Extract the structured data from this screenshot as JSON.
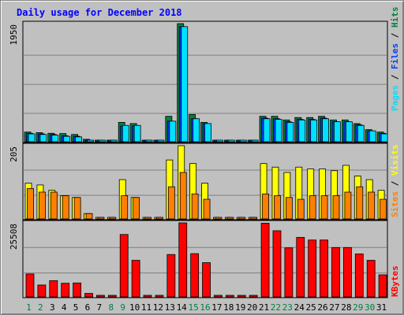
{
  "title": "Daily usage for December 2018",
  "colors": {
    "background": "#c0c0c0",
    "hits": "#008040",
    "files": "#0040ff",
    "pages": "#00e0ff",
    "visits": "#ffff00",
    "sites": "#ff8000",
    "kbytes": "#ff0000",
    "weekend_day": "#008040",
    "weekday": "#000000"
  },
  "chart_data": [
    {
      "type": "bar",
      "panel": "requests",
      "categories": [
        "1",
        "2",
        "3",
        "4",
        "5",
        "6",
        "7",
        "8",
        "9",
        "10",
        "11",
        "12",
        "13",
        "14",
        "15",
        "16",
        "17",
        "18",
        "19",
        "20",
        "21",
        "22",
        "23",
        "24",
        "25",
        "26",
        "27",
        "28",
        "29",
        "30",
        "31"
      ],
      "max_label": "1950",
      "ylim": [
        0,
        1950
      ],
      "series": [
        {
          "name": "Hits",
          "values": [
            160,
            150,
            140,
            135,
            120,
            40,
            0,
            0,
            320,
            300,
            0,
            0,
            420,
            1950,
            450,
            320,
            0,
            0,
            0,
            0,
            420,
            420,
            360,
            400,
            400,
            420,
            360,
            360,
            300,
            200,
            160
          ]
        },
        {
          "name": "Files",
          "values": [
            140,
            130,
            120,
            100,
            90,
            20,
            0,
            0,
            260,
            260,
            0,
            0,
            340,
            1900,
            380,
            300,
            0,
            0,
            0,
            0,
            390,
            380,
            330,
            370,
            370,
            390,
            330,
            330,
            280,
            180,
            140
          ]
        },
        {
          "name": "Pages",
          "values": [
            130,
            120,
            110,
            90,
            80,
            15,
            0,
            0,
            270,
            270,
            0,
            0,
            340,
            1900,
            380,
            300,
            0,
            0,
            0,
            0,
            380,
            370,
            320,
            360,
            360,
            380,
            330,
            330,
            270,
            180,
            130
          ]
        }
      ],
      "legend": [
        "Pages",
        "Files",
        "Hits"
      ]
    },
    {
      "type": "bar",
      "panel": "visitors",
      "categories": [
        "1",
        "2",
        "3",
        "4",
        "5",
        "6",
        "7",
        "8",
        "9",
        "10",
        "11",
        "12",
        "13",
        "14",
        "15",
        "16",
        "17",
        "18",
        "19",
        "20",
        "21",
        "22",
        "23",
        "24",
        "25",
        "26",
        "27",
        "28",
        "29",
        "30",
        "31"
      ],
      "max_label": "205",
      "ylim": [
        0,
        205
      ],
      "series": [
        {
          "name": "Visits",
          "values": [
            100,
            95,
            80,
            65,
            60,
            15,
            0,
            0,
            110,
            60,
            0,
            0,
            165,
            205,
            155,
            100,
            0,
            0,
            0,
            0,
            155,
            145,
            130,
            145,
            140,
            140,
            135,
            150,
            120,
            110,
            80
          ]
        },
        {
          "name": "Sites",
          "values": [
            85,
            75,
            75,
            65,
            60,
            15,
            0,
            0,
            65,
            60,
            0,
            0,
            90,
            130,
            70,
            55,
            0,
            0,
            0,
            0,
            70,
            65,
            60,
            55,
            65,
            65,
            65,
            75,
            90,
            75,
            55
          ]
        }
      ],
      "legend": [
        "Sites",
        "Visits"
      ]
    },
    {
      "type": "bar",
      "panel": "kbytes",
      "categories": [
        "1",
        "2",
        "3",
        "4",
        "5",
        "6",
        "7",
        "8",
        "9",
        "10",
        "11",
        "12",
        "13",
        "14",
        "15",
        "16",
        "17",
        "18",
        "19",
        "20",
        "21",
        "22",
        "23",
        "24",
        "25",
        "26",
        "27",
        "28",
        "29",
        "30",
        "31"
      ],
      "max_label": "25508",
      "ylim": [
        0,
        25508
      ],
      "series": [
        {
          "name": "KBytes",
          "values": [
            7900,
            4100,
            5600,
            4700,
            4800,
            1200,
            0,
            0,
            21500,
            12600,
            0,
            0,
            14600,
            25508,
            14900,
            11800,
            0,
            0,
            0,
            0,
            25400,
            22800,
            16900,
            20500,
            19600,
            19600,
            17000,
            17000,
            14800,
            12600,
            7600
          ]
        }
      ],
      "legend": [
        "KBytes"
      ]
    }
  ],
  "x_axis": {
    "labels": [
      "1",
      "2",
      "3",
      "4",
      "5",
      "6",
      "7",
      "8",
      "9",
      "10",
      "11",
      "12",
      "13",
      "14",
      "15",
      "16",
      "17",
      "18",
      "19",
      "20",
      "21",
      "22",
      "23",
      "24",
      "25",
      "26",
      "27",
      "28",
      "29",
      "30",
      "31"
    ],
    "weekend_days": [
      "1",
      "2",
      "8",
      "9",
      "15",
      "16",
      "22",
      "23",
      "29",
      "30"
    ]
  }
}
